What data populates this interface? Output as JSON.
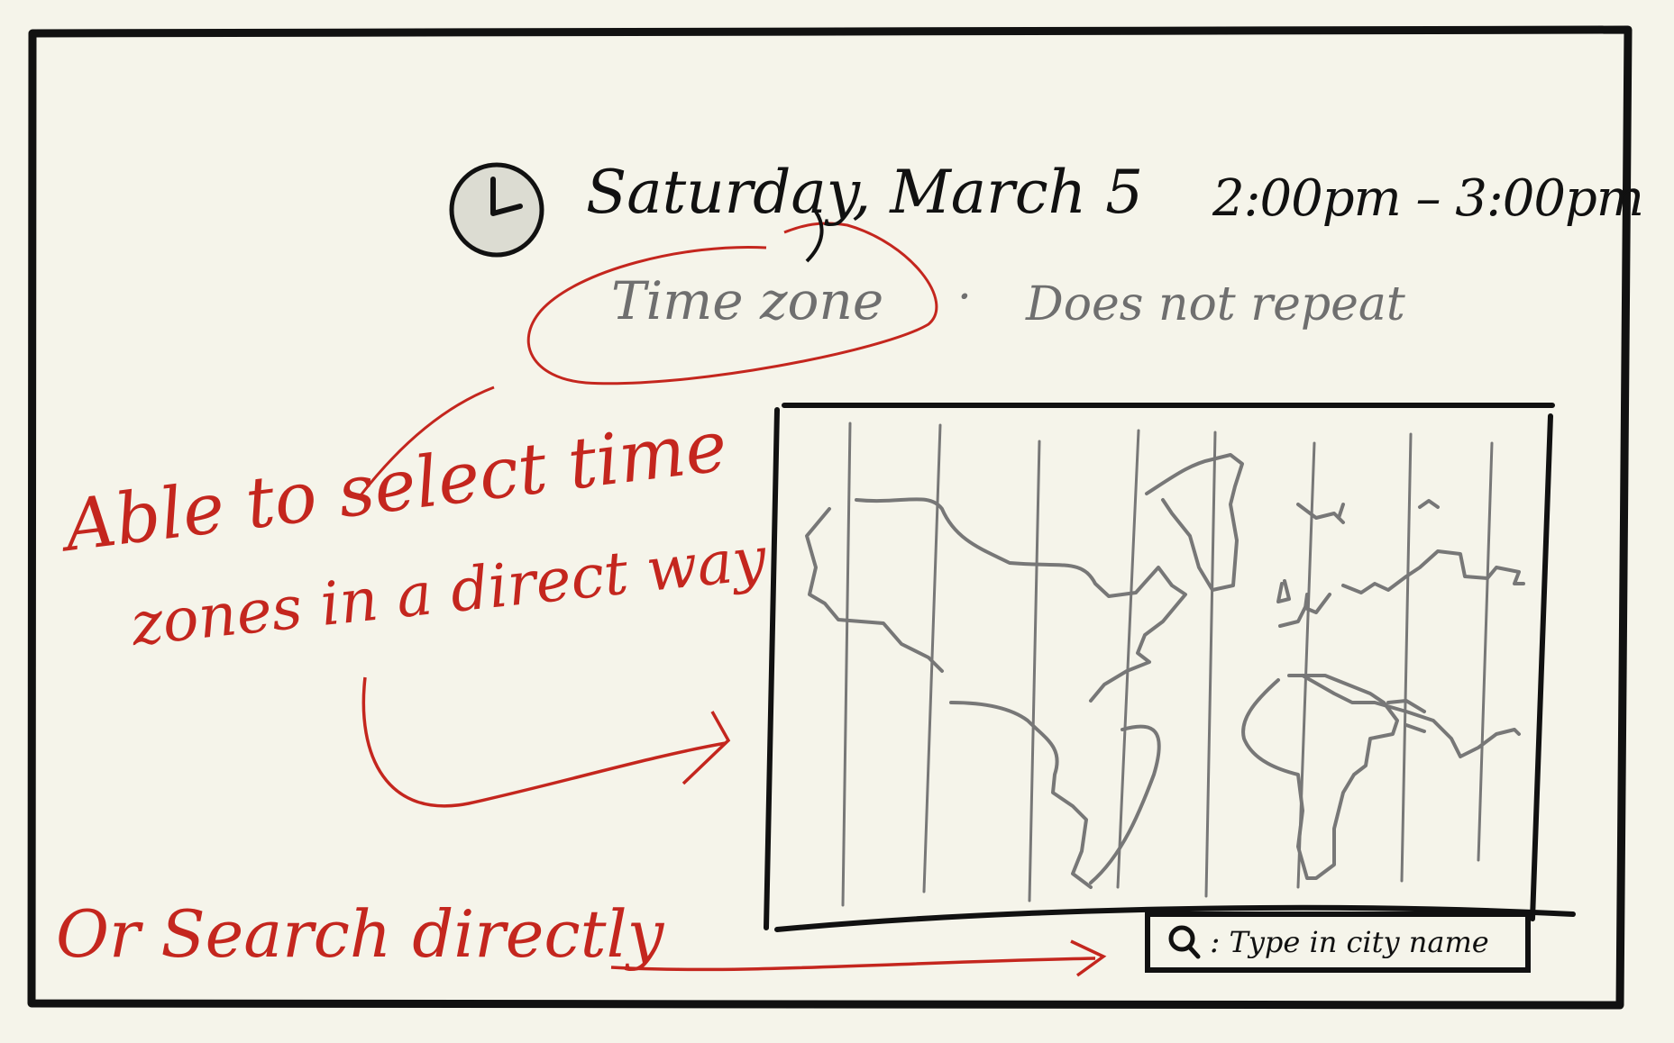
{
  "event": {
    "date": "Saturday, March 5",
    "time_range": "2:00pm – 3:00pm",
    "timezone_label": "Time zone",
    "separator": "·",
    "repeat_label": "Does not repeat"
  },
  "annotations": {
    "note_line1": "Able to select time",
    "note_line2": "zones in a direct way",
    "note_search": "Or Search directly"
  },
  "search": {
    "colon": ":",
    "placeholder": "Type in city name"
  },
  "icons": {
    "clock": "clock-icon",
    "search": "search-icon",
    "map": "world-map-icon"
  },
  "colors": {
    "background": "#f5f4ea",
    "ink": "#111111",
    "pencil": "#6f6f6f",
    "annotation": "#c4261e"
  }
}
